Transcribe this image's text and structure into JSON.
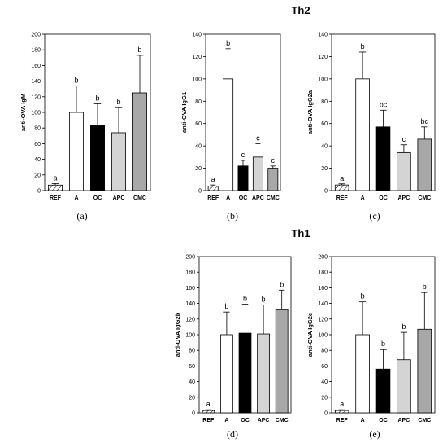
{
  "figure": {
    "group_titles": {
      "th2": "Th2",
      "th1": "Th1"
    },
    "captions": [
      "(a)",
      "(b)",
      "(c)",
      "(d)",
      "(e)"
    ]
  },
  "styles": {
    "REF": {
      "fill": "#ffffff",
      "pattern": "hatch"
    },
    "A": {
      "fill": "#ffffff"
    },
    "OC": {
      "fill": "#000000"
    },
    "APC": {
      "fill": "#d4d4d4"
    },
    "CMC": {
      "fill": "#a8a8a8"
    }
  },
  "chart_data": [
    {
      "type": "bar",
      "ylabel": "anti-OVA IgM",
      "categories": [
        "REF",
        "A",
        "OC",
        "APC",
        "CMC"
      ],
      "values": [
        7,
        100,
        83,
        74,
        125
      ],
      "errors": [
        2,
        34,
        28,
        32,
        48
      ],
      "letters": [
        "a",
        "b",
        "b",
        "b",
        "b"
      ],
      "ylim": [
        0,
        200
      ],
      "yticks": [
        0,
        20,
        40,
        60,
        80,
        100,
        120,
        140,
        160,
        180,
        200
      ]
    },
    {
      "type": "bar",
      "ylabel": "anti-OVA IgG1",
      "categories": [
        "REF",
        "A",
        "OC",
        "APC",
        "CMC"
      ],
      "values": [
        4,
        100,
        22,
        30,
        20
      ],
      "errors": [
        1,
        27,
        5,
        12,
        2
      ],
      "letters": [
        "a",
        "b",
        "c",
        "c",
        "c"
      ],
      "ylim": [
        0,
        140
      ],
      "yticks": [
        0,
        20,
        40,
        60,
        80,
        100,
        120,
        140
      ]
    },
    {
      "type": "bar",
      "ylabel": "anti-OVA IgG2a",
      "categories": [
        "REF",
        "A",
        "OC",
        "APC",
        "CMC"
      ],
      "values": [
        5,
        100,
        57,
        34,
        46
      ],
      "errors": [
        1,
        24,
        15,
        7,
        11
      ],
      "letters": [
        "a",
        "b",
        "bc",
        "c",
        "bc"
      ],
      "ylim": [
        0,
        140
      ],
      "yticks": [
        0,
        20,
        40,
        60,
        80,
        100,
        120,
        140
      ]
    },
    {
      "type": "bar",
      "ylabel": "anti-OVA IgG2b",
      "categories": [
        "REF",
        "A",
        "OC",
        "APC",
        "CMC"
      ],
      "values": [
        3,
        100,
        102,
        101,
        132
      ],
      "errors": [
        1,
        29,
        37,
        37,
        25
      ],
      "letters": [
        "a",
        "b",
        "b",
        "b",
        "b"
      ],
      "ylim": [
        0,
        200
      ],
      "yticks": [
        0,
        20,
        40,
        60,
        80,
        100,
        120,
        140,
        160,
        180,
        200
      ]
    },
    {
      "type": "bar",
      "ylabel": "anti-OVA IgG2c",
      "categories": [
        "REF",
        "A",
        "OC",
        "APC",
        "CMC"
      ],
      "values": [
        3,
        100,
        56,
        68,
        107
      ],
      "errors": [
        1,
        42,
        25,
        35,
        47
      ],
      "letters": [
        "a",
        "b",
        "b",
        "b",
        "b"
      ],
      "ylim": [
        0,
        200
      ],
      "yticks": [
        0,
        20,
        40,
        60,
        80,
        100,
        120,
        140,
        160,
        180,
        200
      ]
    }
  ]
}
